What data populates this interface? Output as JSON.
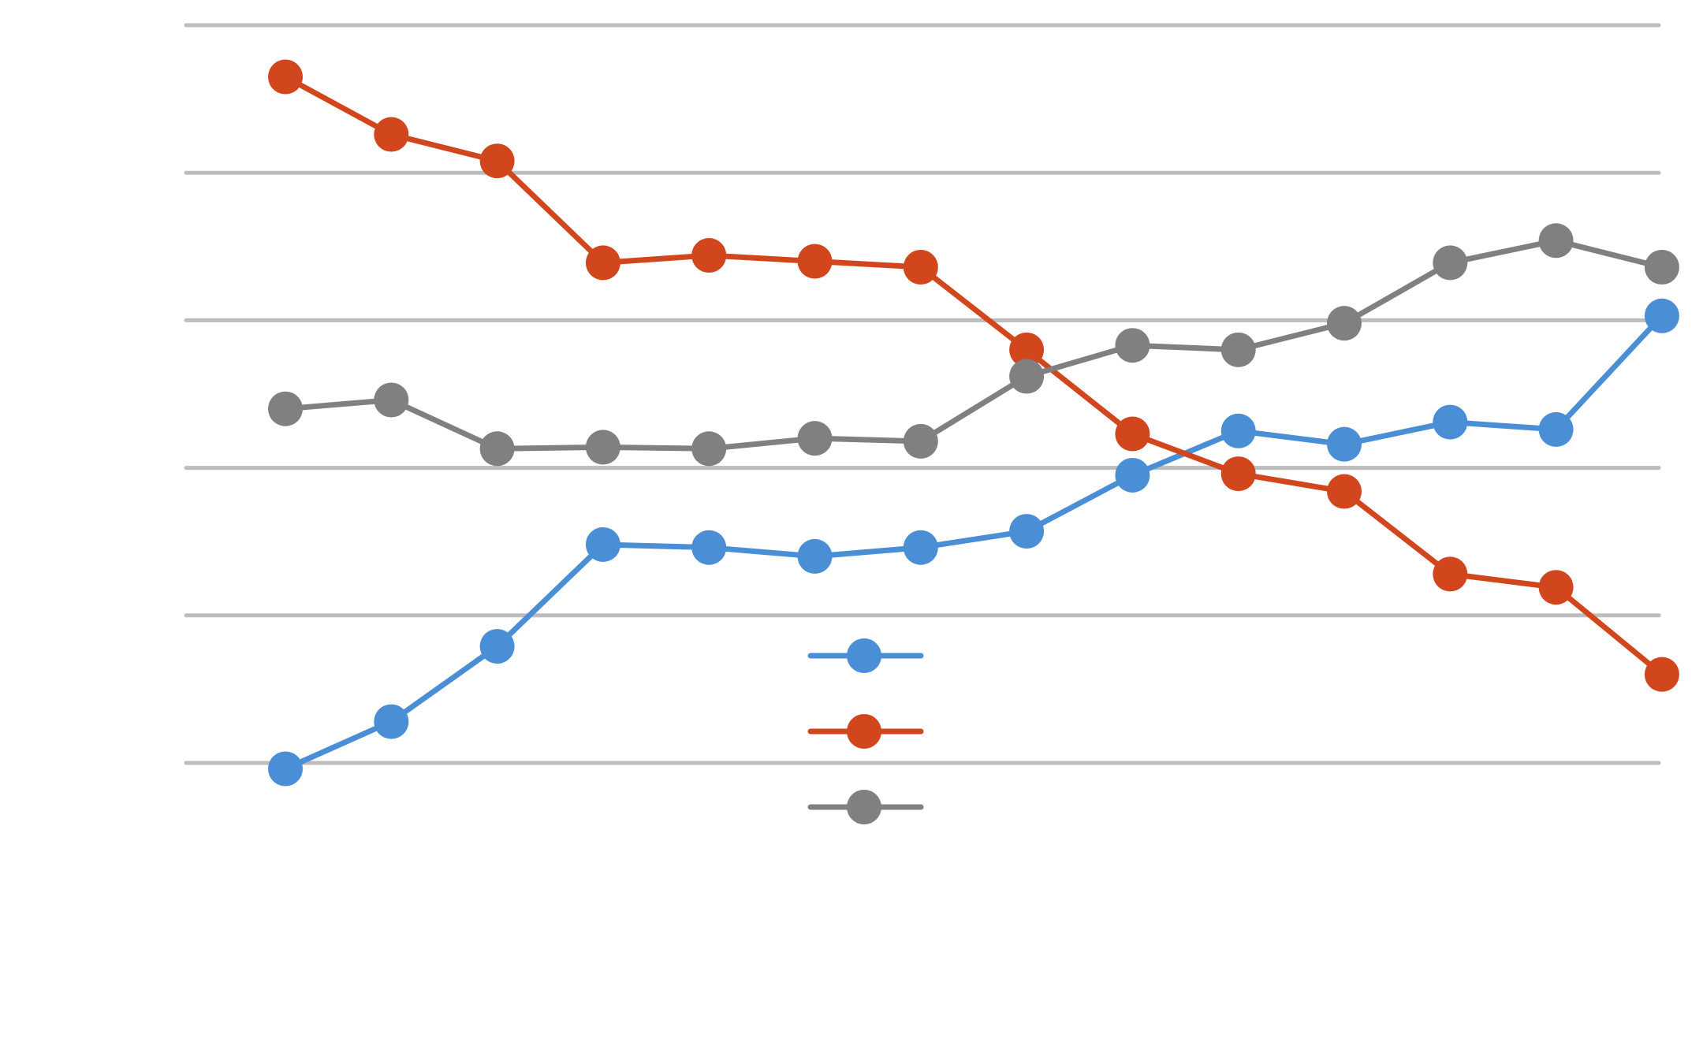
{
  "chart_data": {
    "type": "line",
    "title": "",
    "xlabel": "",
    "ylabel": "",
    "x": [
      1,
      2,
      3,
      4,
      5,
      6,
      7,
      8,
      9,
      10,
      11,
      12,
      13,
      14,
      15
    ],
    "ylim": [
      0,
      50
    ],
    "gridlines_y": [
      0,
      10,
      20,
      30,
      40,
      50
    ],
    "grid": true,
    "legend_position": "center",
    "series": [
      {
        "color": "#4a8fd6",
        "values": [
          -0.4,
          2.8,
          7.9,
          14.8,
          14.6,
          14.0,
          14.6,
          15.7,
          19.5,
          22.5,
          21.6,
          23.1,
          22.6,
          30.3,
          null
        ]
      },
      {
        "color": "#d2461e",
        "values": [
          46.5,
          42.6,
          40.8,
          33.9,
          34.4,
          34.0,
          33.6,
          28.0,
          22.3,
          19.6,
          18.4,
          12.8,
          11.9,
          6.0,
          null
        ]
      },
      {
        "color": "#808080",
        "values": [
          24.0,
          24.6,
          21.3,
          21.4,
          21.3,
          22.0,
          21.8,
          26.2,
          28.3,
          28.0,
          29.8,
          33.9,
          35.4,
          33.6,
          null
        ]
      }
    ]
  }
}
